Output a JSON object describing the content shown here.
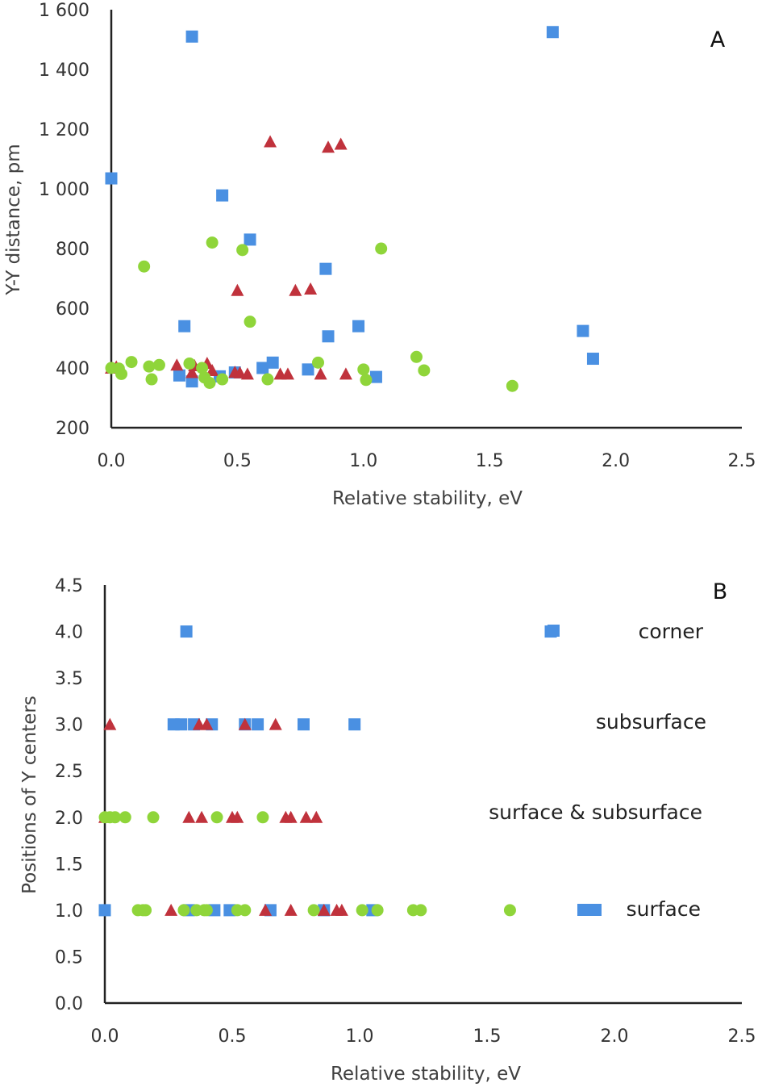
{
  "colors": {
    "square": "#4a90e2",
    "triangle": "#c0323c",
    "circle": "#8fd53a"
  },
  "chart_data": [
    {
      "type": "scatter",
      "panel_label": "A",
      "xlabel": "Relative stability, eV",
      "ylabel": "Y-Y distance, pm",
      "xlim": [
        0,
        2.5
      ],
      "ylim": [
        200,
        1600
      ],
      "xticks": [
        "0.0",
        "0.5",
        "1.0",
        "1.5",
        "2.0",
        "2.5"
      ],
      "yticks": [
        "200",
        "400",
        "600",
        "800",
        "1 000",
        "1 200",
        "1 400",
        "1 600"
      ],
      "grid": false,
      "series": [
        {
          "marker": "square",
          "color": "#4a90e2",
          "x": [
            0.32,
            1.75,
            0.0,
            0.44,
            0.55,
            0.85,
            0.29,
            0.86,
            0.98,
            1.87,
            1.91,
            0.27,
            0.32,
            0.43,
            0.49,
            0.6,
            0.64,
            0.78,
            1.05
          ],
          "y": [
            1510,
            1525,
            1035,
            978,
            830,
            732,
            540,
            506,
            540,
            524,
            431,
            375,
            355,
            372,
            385,
            400,
            418,
            395,
            370
          ]
        },
        {
          "marker": "triangle",
          "color": "#c0323c",
          "x": [
            0.0,
            0.02,
            0.26,
            0.32,
            0.33,
            0.38,
            0.4,
            0.49,
            0.5,
            0.51,
            0.54,
            0.63,
            0.67,
            0.7,
            0.73,
            0.79,
            0.83,
            0.86,
            0.91,
            0.93
          ],
          "y": [
            400,
            404,
            410,
            385,
            408,
            416,
            392,
            386,
            660,
            384,
            380,
            1158,
            380,
            380,
            660,
            665,
            380,
            1140,
            1150,
            380
          ]
        },
        {
          "marker": "circle",
          "color": "#8fd53a",
          "x": [
            0.0,
            0.03,
            0.04,
            0.08,
            0.13,
            0.15,
            0.16,
            0.19,
            0.31,
            0.36,
            0.37,
            0.39,
            0.4,
            0.44,
            0.52,
            0.55,
            0.62,
            0.82,
            1.0,
            1.01,
            1.07,
            1.21,
            1.24,
            1.59
          ],
          "y": [
            400,
            398,
            380,
            420,
            740,
            405,
            362,
            410,
            415,
            400,
            368,
            350,
            820,
            362,
            795,
            555,
            362,
            418,
            395,
            360,
            800,
            437,
            392,
            340
          ]
        }
      ]
    },
    {
      "type": "scatter",
      "panel_label": "B",
      "xlabel": "Relative stability, eV",
      "ylabel": "Positions of Y centers",
      "xlim": [
        0,
        2.5
      ],
      "ylim": [
        0,
        4.5
      ],
      "xticks": [
        "0.0",
        "0.5",
        "1.0",
        "1.5",
        "2.0",
        "2.5"
      ],
      "yticks": [
        "0.0",
        "0.5",
        "1.0",
        "1.5",
        "2.0",
        "2.5",
        "3.0",
        "3.5",
        "4.0",
        "4.5"
      ],
      "grid": false,
      "category_labels": [
        {
          "text": "corner",
          "y": 4.0,
          "marker": "square"
        },
        {
          "text": "subsurface",
          "y": 3.0
        },
        {
          "text": "surface & subsurface",
          "y": 2.0
        },
        {
          "text": "surface",
          "y": 1.0,
          "marker": "wide-square"
        }
      ],
      "series": [
        {
          "marker": "square",
          "color": "#4a90e2",
          "x": [
            0.32,
            0.0,
            0.27,
            0.3,
            0.35,
            0.42,
            0.55,
            0.6,
            0.78,
            0.98,
            0.33,
            0.43,
            0.49,
            0.65,
            0.86,
            1.05,
            1.75
          ],
          "y": [
            4.0,
            1.0,
            3.0,
            3.0,
            3.0,
            3.0,
            3.0,
            3.0,
            3.0,
            3.0,
            1.0,
            1.0,
            1.0,
            1.0,
            1.0,
            1.0,
            4.0
          ]
        },
        {
          "marker": "triangle",
          "color": "#c0323c",
          "x": [
            0.02,
            0.37,
            0.4,
            0.55,
            0.67,
            0.0,
            0.33,
            0.38,
            0.5,
            0.52,
            0.71,
            0.73,
            0.79,
            0.83,
            0.26,
            0.63,
            0.73,
            0.86,
            0.91,
            0.93
          ],
          "y": [
            3.0,
            3.0,
            3.0,
            3.0,
            3.0,
            2.0,
            2.0,
            2.0,
            2.0,
            2.0,
            2.0,
            2.0,
            2.0,
            2.0,
            1.0,
            1.0,
            1.0,
            1.0,
            1.0,
            1.0
          ]
        },
        {
          "marker": "circle",
          "color": "#8fd53a",
          "x": [
            0.0,
            0.02,
            0.04,
            0.08,
            0.19,
            0.44,
            0.62,
            0.13,
            0.15,
            0.16,
            0.31,
            0.36,
            0.39,
            0.4,
            0.52,
            0.55,
            0.82,
            1.01,
            1.07,
            1.21,
            1.24,
            1.59
          ],
          "y": [
            2.0,
            2.0,
            2.0,
            2.0,
            2.0,
            2.0,
            2.0,
            1.0,
            1.0,
            1.0,
            1.0,
            1.0,
            1.0,
            1.0,
            1.0,
            1.0,
            1.0,
            1.0,
            1.0,
            1.0,
            1.0,
            1.0
          ]
        }
      ]
    }
  ]
}
